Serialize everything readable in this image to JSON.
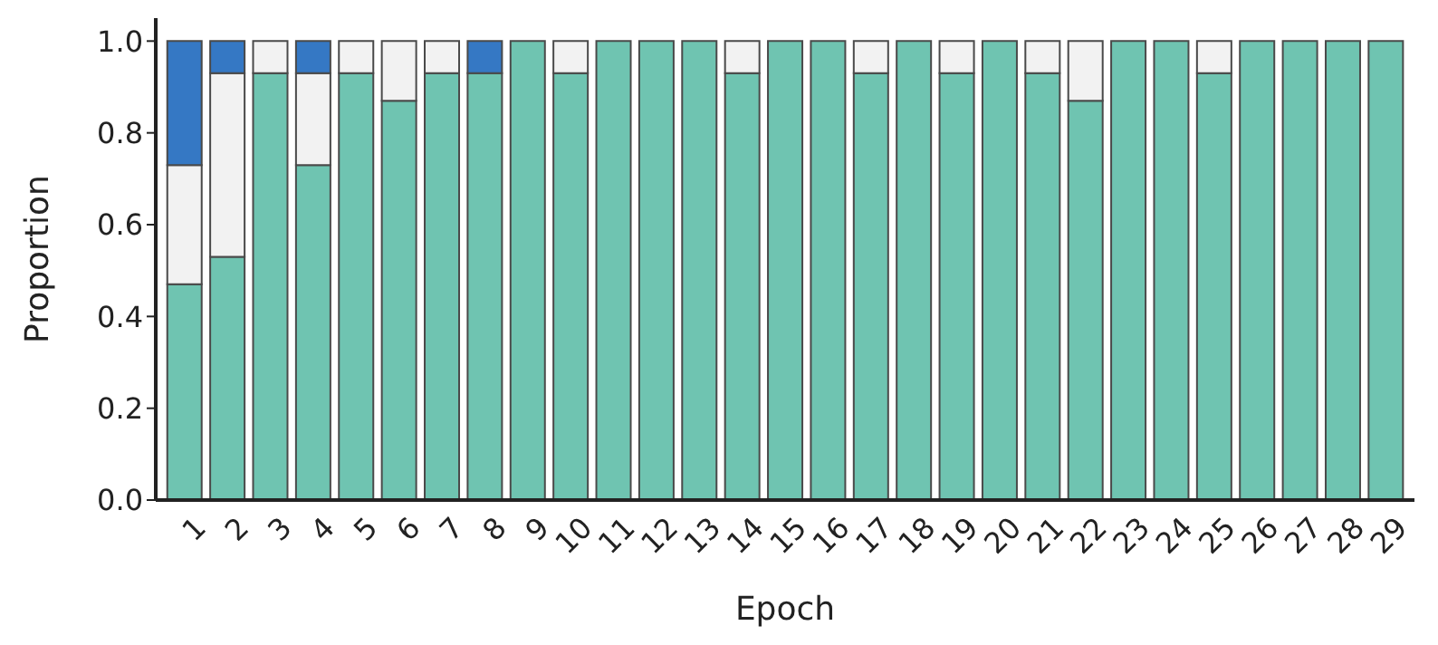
{
  "chart_data": {
    "type": "bar",
    "xlabel": "Epoch",
    "ylabel": "Proportion",
    "categories": [
      "1",
      "2",
      "3",
      "4",
      "5",
      "6",
      "7",
      "8",
      "9",
      "10",
      "11",
      "12",
      "13",
      "14",
      "15",
      "16",
      "17",
      "18",
      "19",
      "20",
      "21",
      "22",
      "23",
      "24",
      "25",
      "26",
      "27",
      "28",
      "29"
    ],
    "stacked": true,
    "series": [
      {
        "color": "#6fc4b1",
        "values": [
          0.47,
          0.53,
          0.93,
          0.73,
          0.93,
          0.87,
          0.93,
          0.93,
          1,
          0.93,
          1,
          1,
          1,
          0.93,
          1,
          1,
          0.93,
          1,
          0.93,
          1,
          0.93,
          0.87,
          1,
          1,
          0.93,
          1,
          1,
          1,
          1
        ]
      },
      {
        "color": "#f2f2f2",
        "values": [
          0.26,
          0.4,
          0.07,
          0.2,
          0.07,
          0.13,
          0.07,
          0,
          0,
          0.07,
          0,
          0,
          0,
          0.07,
          0,
          0,
          0.07,
          0,
          0.07,
          0,
          0.07,
          0.13,
          0,
          0,
          0.07,
          0,
          0,
          0,
          0
        ]
      },
      {
        "color": "#3578c4",
        "values": [
          0.27,
          0.07,
          0,
          0.07,
          0,
          0,
          0,
          0.07,
          0,
          0,
          0,
          0,
          0,
          0,
          0,
          0,
          0,
          0,
          0,
          0,
          0,
          0,
          0,
          0,
          0,
          0,
          0,
          0,
          0
        ]
      }
    ],
    "ylim": [
      0,
      1.05
    ],
    "yticks": [
      {
        "value": 0,
        "label": "0.0"
      },
      {
        "value": 0.2,
        "label": "0.2"
      },
      {
        "value": 0.4,
        "label": "0.4"
      },
      {
        "value": 0.6,
        "label": "0.6"
      },
      {
        "value": 0.8,
        "label": "0.8"
      },
      {
        "value": 1,
        "label": "1.0"
      }
    ],
    "grid": false,
    "legend": false
  }
}
